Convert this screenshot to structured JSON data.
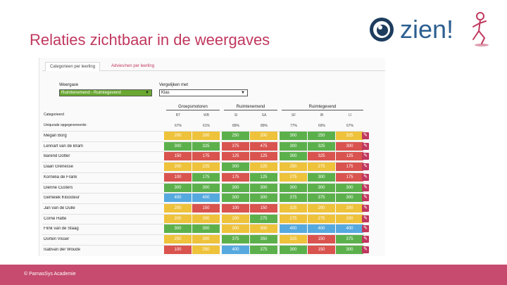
{
  "slide": {
    "title": "Relaties zichtbaar in de weergaves"
  },
  "logo": {
    "text": "zien!"
  },
  "tabs": [
    "Categorieen per leerling",
    "Advies/nen per leerling"
  ],
  "filters": {
    "weergave_label": "Weergave",
    "weergave_value": "Ruimtenemend - Ruimtegevend",
    "vergelijken_label": "Vergelijken met",
    "vergelijken_value": "Klas"
  },
  "groups": [
    "Groepsmotoren",
    "Ruimtenemend",
    "Ruimtegevend"
  ],
  "table": {
    "category_header": "Categorieerd",
    "unique_header": "Uniquoale opgegevereerde:",
    "columns": [
      "BT",
      "WB",
      "SI",
      "SA",
      "SF",
      "IB",
      "IJ"
    ],
    "percentages": [
      "67%",
      "61%",
      "89%",
      "89%",
      "77%",
      "69%",
      "67%"
    ],
    "rows": [
      {
        "name": "Megan Borg",
        "values": [
          "200",
          "200",
          "250",
          "200",
          "300",
          "250",
          "325"
        ],
        "colors": [
          "y",
          "y",
          "g",
          "y",
          "g",
          "g",
          "y"
        ]
      },
      {
        "name": "Lennart van de Bram",
        "values": [
          "300",
          "325",
          "375",
          "475",
          "300",
          "325",
          "300"
        ],
        "colors": [
          "g",
          "g",
          "r",
          "r",
          "g",
          "g",
          "r"
        ]
      },
      {
        "name": "Barend Dotter",
        "values": [
          "150",
          "175",
          "125",
          "125",
          "300",
          "325",
          "125"
        ],
        "colors": [
          "r",
          "r",
          "r",
          "r",
          "g",
          "r",
          "r"
        ]
      },
      {
        "name": "Daan Grenesse",
        "values": [
          "200",
          "225",
          "300",
          "225",
          "250",
          "275",
          "175"
        ],
        "colors": [
          "y",
          "y",
          "g",
          "y",
          "y",
          "y",
          "r"
        ]
      },
      {
        "name": "Kornelia de Frank",
        "values": [
          "100",
          "175",
          "175",
          "125",
          "275",
          "300",
          "175"
        ],
        "colors": [
          "r",
          "g",
          "r",
          "g",
          "y",
          "g",
          "r"
        ]
      },
      {
        "name": "Dienne Custers",
        "values": [
          "300",
          "300",
          "300",
          "300",
          "300",
          "300",
          "300"
        ],
        "colors": [
          "g",
          "g",
          "g",
          "g",
          "g",
          "g",
          "g"
        ]
      },
      {
        "name": "Gemeiek Kloosteur",
        "values": [
          "400",
          "400",
          "300",
          "300",
          "375",
          "375",
          "300"
        ],
        "colors": [
          "b",
          "b",
          "g",
          "g",
          "g",
          "g",
          "g"
        ]
      },
      {
        "name": "Jan van de Dulle",
        "values": [
          "200",
          "150",
          "100",
          "150",
          "325",
          "200",
          "200"
        ],
        "colors": [
          "y",
          "r",
          "r",
          "r",
          "y",
          "y",
          "y"
        ]
      },
      {
        "name": "Corné Hatte",
        "values": [
          "200",
          "200",
          "200",
          "275",
          "275",
          "275",
          "200"
        ],
        "colors": [
          "y",
          "y",
          "y",
          "g",
          "y",
          "y",
          "y"
        ]
      },
      {
        "name": "Flink van de Staag",
        "values": [
          "300",
          "300",
          "300",
          "300",
          "400",
          "400",
          "400"
        ],
        "colors": [
          "g",
          "g",
          "y",
          "y",
          "b",
          "b",
          "b"
        ]
      },
      {
        "name": "Dorten Visser",
        "values": [
          "250",
          "300",
          "375",
          "350",
          "325",
          "150",
          "375"
        ],
        "colors": [
          "y",
          "y",
          "g",
          "g",
          "y",
          "r",
          "g"
        ]
      },
      {
        "name": "Isabvan der Woude",
        "values": [
          "100",
          "250",
          "400",
          "375",
          "300",
          "150",
          "300"
        ],
        "colors": [
          "r",
          "y",
          "b",
          "g",
          "g",
          "r",
          "g"
        ]
      }
    ]
  },
  "palette": {
    "g": "#5cb04c",
    "y": "#eec23a",
    "r": "#d9534f",
    "b": "#56a9de",
    "accent": "#c0385e",
    "footer": "#c64b6e"
  },
  "footer": {
    "text": "© ParnasSys Academie"
  }
}
